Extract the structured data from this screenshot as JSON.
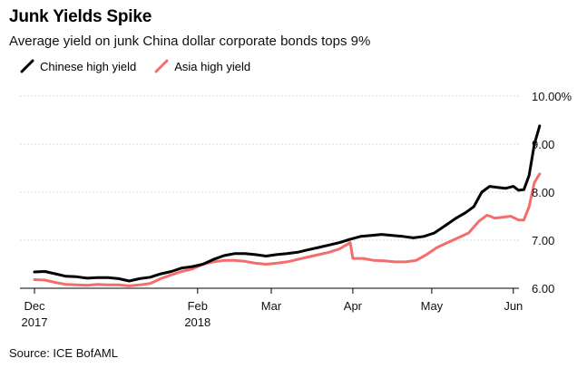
{
  "title": "Junk Yields Spike",
  "subtitle": "Average yield on junk China dollar corporate bonds tops 9%",
  "source": "Source: ICE BofAML",
  "chart_data": {
    "type": "line",
    "title": "Junk Yields Spike",
    "subtitle": "Average yield on junk China dollar corporate bonds tops 9%",
    "xlabel": "",
    "ylabel": "",
    "ylim": [
      6.0,
      10.0
    ],
    "yticks": [
      6.0,
      7.0,
      8.0,
      9.0,
      10.0
    ],
    "ytick_labels": [
      "6.00",
      "7.00",
      "8.00",
      "9.00",
      "10.00%"
    ],
    "xlim": [
      "2017-12-01",
      "2018-06-05"
    ],
    "xticks": [
      "2017-12-01",
      "2018-02-01",
      "2018-03-01",
      "2018-04-01",
      "2018-05-01",
      "2018-06-01"
    ],
    "xtick_labels": [
      {
        "top": "Dec",
        "bottom": "2017"
      },
      {
        "top": "Feb",
        "bottom": "2018"
      },
      {
        "top": "Mar",
        "bottom": ""
      },
      {
        "top": "Apr",
        "bottom": ""
      },
      {
        "top": "May",
        "bottom": ""
      },
      {
        "top": "Jun",
        "bottom": ""
      }
    ],
    "grid": true,
    "legend_position": "top-left",
    "series": [
      {
        "name": "Chinese high yield",
        "color": "#000000",
        "points": [
          [
            "2017-12-01",
            6.34
          ],
          [
            "2017-12-05",
            6.35
          ],
          [
            "2017-12-09",
            6.3
          ],
          [
            "2017-12-13",
            6.25
          ],
          [
            "2017-12-17",
            6.24
          ],
          [
            "2017-12-21",
            6.21
          ],
          [
            "2017-12-25",
            6.22
          ],
          [
            "2017-12-29",
            6.22
          ],
          [
            "2018-01-02",
            6.2
          ],
          [
            "2018-01-06",
            6.15
          ],
          [
            "2018-01-10",
            6.2
          ],
          [
            "2018-01-14",
            6.23
          ],
          [
            "2018-01-18",
            6.3
          ],
          [
            "2018-01-22",
            6.35
          ],
          [
            "2018-01-26",
            6.42
          ],
          [
            "2018-01-30",
            6.45
          ],
          [
            "2018-02-03",
            6.5
          ],
          [
            "2018-02-07",
            6.6
          ],
          [
            "2018-02-11",
            6.68
          ],
          [
            "2018-02-15",
            6.72
          ],
          [
            "2018-02-19",
            6.72
          ],
          [
            "2018-02-23",
            6.7
          ],
          [
            "2018-02-27",
            6.67
          ],
          [
            "2018-03-03",
            6.7
          ],
          [
            "2018-03-07",
            6.72
          ],
          [
            "2018-03-11",
            6.75
          ],
          [
            "2018-03-15",
            6.8
          ],
          [
            "2018-03-19",
            6.85
          ],
          [
            "2018-03-23",
            6.9
          ],
          [
            "2018-03-27",
            6.95
          ],
          [
            "2018-03-31",
            7.02
          ],
          [
            "2018-04-04",
            7.08
          ],
          [
            "2018-04-08",
            7.1
          ],
          [
            "2018-04-12",
            7.12
          ],
          [
            "2018-04-16",
            7.1
          ],
          [
            "2018-04-20",
            7.08
          ],
          [
            "2018-04-24",
            7.05
          ],
          [
            "2018-04-28",
            7.08
          ],
          [
            "2018-05-02",
            7.15
          ],
          [
            "2018-05-06",
            7.3
          ],
          [
            "2018-05-10",
            7.45
          ],
          [
            "2018-05-14",
            7.58
          ],
          [
            "2018-05-17",
            7.7
          ],
          [
            "2018-05-20",
            8.0
          ],
          [
            "2018-05-23",
            8.12
          ],
          [
            "2018-05-26",
            8.1
          ],
          [
            "2018-05-29",
            8.08
          ],
          [
            "2018-06-01",
            8.12
          ],
          [
            "2018-06-03",
            8.04
          ],
          [
            "2018-06-05",
            8.05
          ],
          [
            "2018-06-07",
            8.35
          ],
          [
            "2018-06-09",
            9.0
          ],
          [
            "2018-06-11",
            9.38
          ]
        ]
      },
      {
        "name": "Asia high yield",
        "color": "#f46d6d",
        "points": [
          [
            "2017-12-01",
            6.18
          ],
          [
            "2017-12-05",
            6.17
          ],
          [
            "2017-12-09",
            6.12
          ],
          [
            "2017-12-13",
            6.08
          ],
          [
            "2017-12-17",
            6.07
          ],
          [
            "2017-12-21",
            6.06
          ],
          [
            "2017-12-25",
            6.08
          ],
          [
            "2017-12-29",
            6.07
          ],
          [
            "2018-01-02",
            6.07
          ],
          [
            "2018-01-06",
            6.05
          ],
          [
            "2018-01-10",
            6.07
          ],
          [
            "2018-01-14",
            6.1
          ],
          [
            "2018-01-18",
            6.2
          ],
          [
            "2018-01-22",
            6.28
          ],
          [
            "2018-01-26",
            6.35
          ],
          [
            "2018-01-30",
            6.4
          ],
          [
            "2018-02-03",
            6.5
          ],
          [
            "2018-02-07",
            6.55
          ],
          [
            "2018-02-11",
            6.58
          ],
          [
            "2018-02-15",
            6.58
          ],
          [
            "2018-02-19",
            6.56
          ],
          [
            "2018-02-23",
            6.52
          ],
          [
            "2018-02-27",
            6.5
          ],
          [
            "2018-03-03",
            6.52
          ],
          [
            "2018-03-07",
            6.55
          ],
          [
            "2018-03-11",
            6.6
          ],
          [
            "2018-03-15",
            6.65
          ],
          [
            "2018-03-19",
            6.7
          ],
          [
            "2018-03-23",
            6.75
          ],
          [
            "2018-03-27",
            6.82
          ],
          [
            "2018-03-31",
            6.95
          ],
          [
            "2018-04-01",
            6.62
          ],
          [
            "2018-04-05",
            6.62
          ],
          [
            "2018-04-09",
            6.58
          ],
          [
            "2018-04-13",
            6.57
          ],
          [
            "2018-04-17",
            6.55
          ],
          [
            "2018-04-21",
            6.55
          ],
          [
            "2018-04-25",
            6.58
          ],
          [
            "2018-04-29",
            6.7
          ],
          [
            "2018-05-03",
            6.85
          ],
          [
            "2018-05-07",
            6.95
          ],
          [
            "2018-05-11",
            7.05
          ],
          [
            "2018-05-15",
            7.15
          ],
          [
            "2018-05-19",
            7.4
          ],
          [
            "2018-05-22",
            7.52
          ],
          [
            "2018-05-25",
            7.46
          ],
          [
            "2018-05-28",
            7.48
          ],
          [
            "2018-05-31",
            7.5
          ],
          [
            "2018-06-03",
            7.42
          ],
          [
            "2018-06-05",
            7.42
          ],
          [
            "2018-06-07",
            7.7
          ],
          [
            "2018-06-09",
            8.2
          ],
          [
            "2018-06-11",
            8.38
          ]
        ]
      }
    ]
  }
}
